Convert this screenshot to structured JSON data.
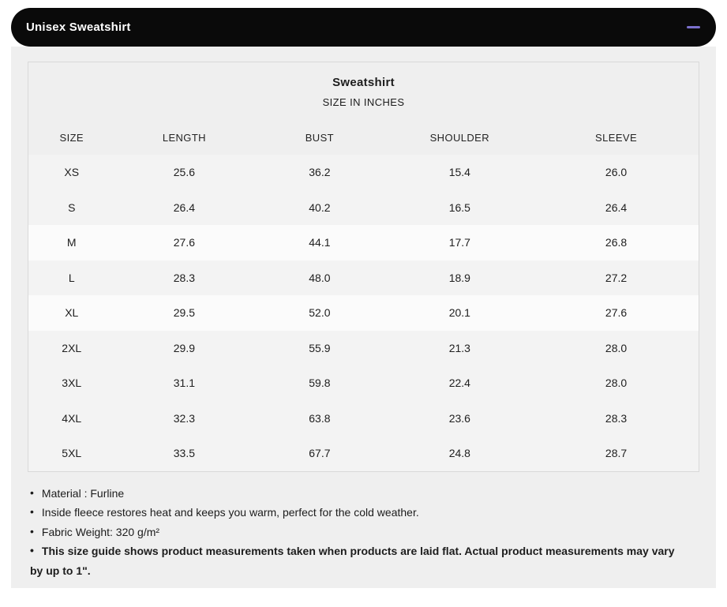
{
  "theme": {
    "header_bg": "#0a0a0a",
    "header_text": "#ffffff",
    "accent": "#7b70cd",
    "panel_bg": "#efefef",
    "row_bg": "#f3f3f3",
    "row_bg_bright": "#fbfbfb",
    "table_border": "#d9d9d9",
    "text": "#1c1c1c"
  },
  "accordion": {
    "title": "Unisex Sweatshirt",
    "collapse_icon": "minus"
  },
  "size_chart": {
    "title": "Sweatshirt",
    "subtitle": "SIZE IN INCHES",
    "columns": [
      "SIZE",
      "LENGTH",
      "BUST",
      "SHOULDER",
      "SLEEVE"
    ],
    "rows": [
      [
        "XS",
        "25.6",
        "36.2",
        "15.4",
        "26.0"
      ],
      [
        "S",
        "26.4",
        "40.2",
        "16.5",
        "26.4"
      ],
      [
        "M",
        "27.6",
        "44.1",
        "17.7",
        "26.8"
      ],
      [
        "L",
        "28.3",
        "48.0",
        "18.9",
        "27.2"
      ],
      [
        "XL",
        "29.5",
        "52.0",
        "20.1",
        "27.6"
      ],
      [
        "2XL",
        "29.9",
        "55.9",
        "21.3",
        "28.0"
      ],
      [
        "3XL",
        "31.1",
        "59.8",
        "22.4",
        "28.0"
      ],
      [
        "4XL",
        "32.3",
        "63.8",
        "23.6",
        "28.3"
      ],
      [
        "5XL",
        "33.5",
        "67.7",
        "24.8",
        "28.7"
      ]
    ]
  },
  "notes": [
    {
      "text": "Material : Furline",
      "bold": false
    },
    {
      "text": "Inside fleece restores heat and keeps you warm, perfect for the cold weather.",
      "bold": false
    },
    {
      "text": "Fabric Weight: 320 g/m²",
      "bold": false
    },
    {
      "text": "This size guide shows product measurements taken when products are laid flat. Actual product measurements may vary by up to 1\".",
      "bold": true
    }
  ]
}
